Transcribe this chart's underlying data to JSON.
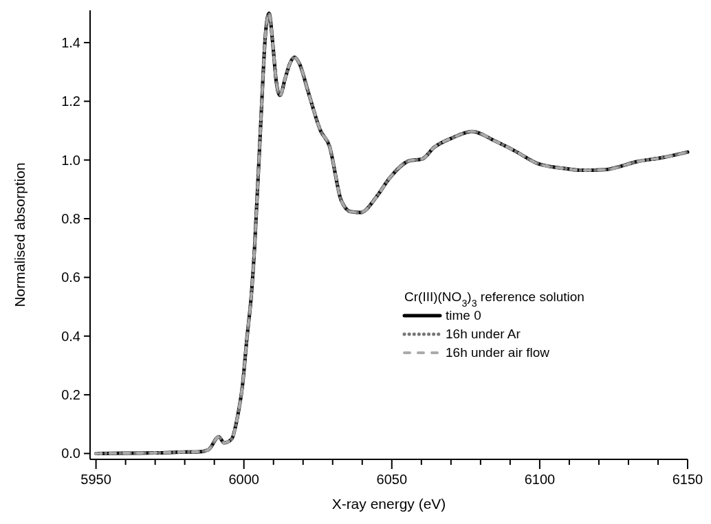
{
  "chart_data": {
    "type": "line",
    "xlabel": "X-ray energy (eV)",
    "ylabel": "Normalised absorption",
    "legend_title": "Cr(III)(NO$_{3}$)$_{3}$ reference solution",
    "legend": "bottom right",
    "x": [
      5950,
      5960,
      5970,
      5980,
      5985,
      5988,
      5991.5,
      5993.3,
      5995.9,
      5997.9,
      5999.5,
      6001,
      6002.6,
      6003.6,
      6004.4,
      6005.2,
      6006.2,
      6007.3,
      6008.5,
      6009.9,
      6010.9,
      6012.2,
      6014,
      6015.6,
      6017.1,
      6018.7,
      6021.8,
      6025.9,
      6028.9,
      6032.9,
      6036.1,
      6039.4,
      6045,
      6049,
      6056.2,
      6060.2,
      6064.3,
      6070.6,
      6077.1,
      6085,
      6092.3,
      6099.5,
      6109.3,
      6114,
      6122,
      6133.2,
      6141.4,
      6150
    ],
    "series": [
      {
        "name": "time 0",
        "color": "#000000",
        "line_style": "solid",
        "values": [
          0,
          0.001,
          0.002,
          0.005,
          0.006,
          0.013,
          0.057,
          0.036,
          0.05,
          0.128,
          0.23,
          0.39,
          0.55,
          0.7,
          0.86,
          1.02,
          1.23,
          1.43,
          1.5,
          1.38,
          1.27,
          1.22,
          1.28,
          1.33,
          1.35,
          1.33,
          1.23,
          1.1,
          1.048,
          0.862,
          0.824,
          0.821,
          0.877,
          0.935,
          0.998,
          1.003,
          1.043,
          1.076,
          1.097,
          1.064,
          1.027,
          0.987,
          0.97,
          0.965,
          0.967,
          0.995,
          1.008,
          1.027
        ]
      },
      {
        "name": "16h under Ar",
        "color": "#777777",
        "line_style": "dotted",
        "values": [
          0,
          0.001,
          0.002,
          0.005,
          0.006,
          0.013,
          0.057,
          0.036,
          0.05,
          0.128,
          0.23,
          0.39,
          0.55,
          0.7,
          0.86,
          1.02,
          1.23,
          1.43,
          1.5,
          1.38,
          1.27,
          1.22,
          1.28,
          1.33,
          1.35,
          1.33,
          1.23,
          1.1,
          1.048,
          0.862,
          0.824,
          0.821,
          0.877,
          0.935,
          0.998,
          1.003,
          1.043,
          1.076,
          1.097,
          1.064,
          1.027,
          0.987,
          0.97,
          0.965,
          0.967,
          0.995,
          1.008,
          1.027
        ]
      },
      {
        "name": "16h under air flow",
        "color": "#aaaaaa",
        "line_style": "dashed",
        "values": [
          0,
          0.001,
          0.002,
          0.005,
          0.006,
          0.013,
          0.057,
          0.036,
          0.05,
          0.128,
          0.23,
          0.39,
          0.55,
          0.7,
          0.86,
          1.02,
          1.23,
          1.43,
          1.5,
          1.38,
          1.27,
          1.22,
          1.28,
          1.33,
          1.35,
          1.33,
          1.23,
          1.1,
          1.048,
          0.862,
          0.824,
          0.821,
          0.877,
          0.935,
          0.998,
          1.003,
          1.043,
          1.076,
          1.097,
          1.064,
          1.027,
          0.987,
          0.97,
          0.965,
          0.967,
          0.995,
          1.008,
          1.027
        ]
      }
    ],
    "xlim": [
      5948,
      6150
    ],
    "ylim": [
      -0.02,
      1.51
    ],
    "xticks": [
      5950,
      {
        "value": 5960,
        "label": null
      },
      {
        "value": 5970,
        "label": null
      },
      {
        "value": 5980,
        "label": null
      },
      {
        "value": 5990,
        "label": null
      },
      6000,
      {
        "value": 6010,
        "label": null
      },
      {
        "value": 6020,
        "label": null
      },
      {
        "value": 6030,
        "label": null
      },
      {
        "value": 6040,
        "label": null
      },
      6050,
      {
        "value": 6060,
        "label": null
      },
      {
        "value": 6070,
        "label": null
      },
      {
        "value": 6080,
        "label": null
      },
      {
        "value": 6090,
        "label": null
      },
      6100,
      {
        "value": 6110,
        "label": null
      },
      {
        "value": 6120,
        "label": null
      },
      {
        "value": 6130,
        "label": null
      },
      {
        "value": 6140,
        "label": null
      },
      6150
    ],
    "yticks": [
      {
        "value": 0,
        "label": "0.0"
      },
      {
        "value": 0.2,
        "label": "0.2"
      },
      {
        "value": 0.4,
        "label": "0.4"
      },
      {
        "value": 0.6,
        "label": "0.6"
      },
      {
        "value": 0.8,
        "label": "0.8"
      },
      {
        "value": 1,
        "label": "1.0"
      },
      {
        "value": 1.2,
        "label": "1.2"
      },
      {
        "value": 1.4,
        "label": "1.4"
      }
    ],
    "grid": false
  }
}
